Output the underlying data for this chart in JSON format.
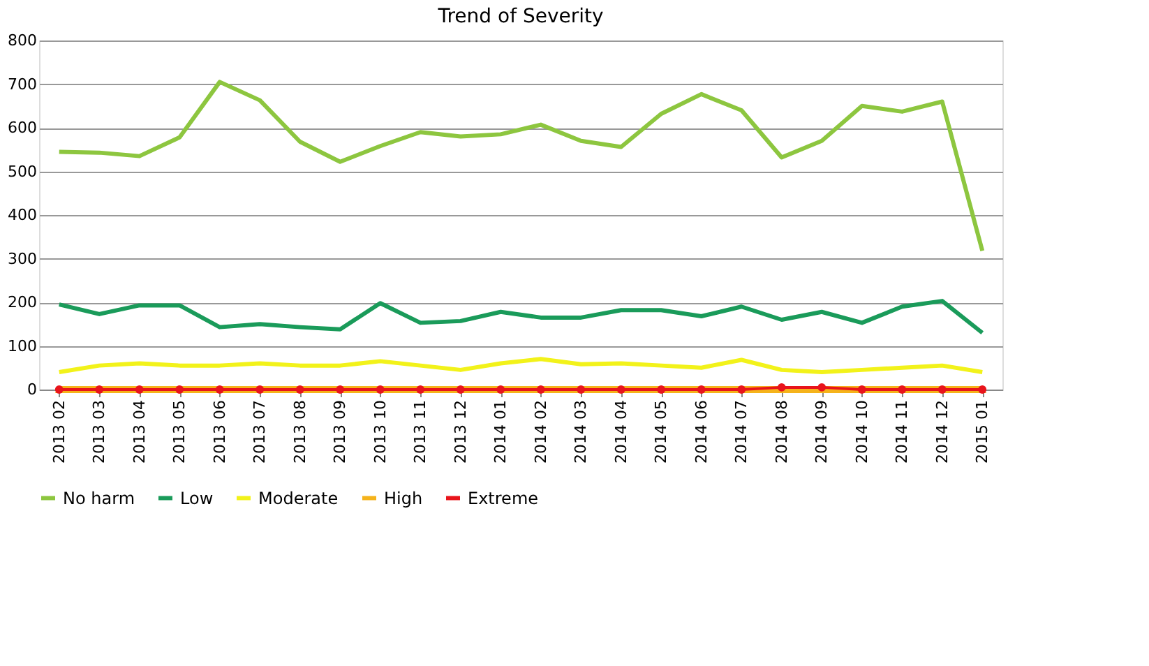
{
  "chart_data": {
    "type": "line",
    "title": "Trend of Severity",
    "categories": [
      "2013 02",
      "2013 03",
      "2013 04",
      "2013 05",
      "2013 06",
      "2013 07",
      "2013 08",
      "2013 09",
      "2013 10",
      "2013 11",
      "2013 12",
      "2014 01",
      "2014 02",
      "2014 03",
      "2014 04",
      "2014 05",
      "2014 06",
      "2014 07",
      "2014 08",
      "2014 09",
      "2014 10",
      "2014 11",
      "2014 12",
      "2015 01"
    ],
    "series": [
      {
        "name": "No harm",
        "color": "#8dc63f",
        "marker": "none",
        "values": [
          545,
          543,
          535,
          578,
          705,
          663,
          568,
          522,
          558,
          590,
          580,
          585,
          607,
          570,
          556,
          632,
          677,
          640,
          532,
          570,
          650,
          637,
          660,
          318
        ]
      },
      {
        "name": "Low",
        "color": "#1a9b5a",
        "marker": "none",
        "values": [
          195,
          173,
          193,
          193,
          143,
          150,
          143,
          138,
          198,
          153,
          157,
          178,
          165,
          165,
          182,
          182,
          168,
          190,
          160,
          178,
          153,
          190,
          203,
          130
        ]
      },
      {
        "name": "Moderate",
        "color": "#f2f21a",
        "marker": "none",
        "values": [
          40,
          55,
          60,
          55,
          55,
          60,
          55,
          55,
          65,
          55,
          45,
          60,
          70,
          58,
          60,
          55,
          50,
          68,
          45,
          40,
          45,
          50,
          55,
          40
        ]
      },
      {
        "name": "High",
        "color": "#f5b31b",
        "marker": "triangle",
        "values": [
          0,
          0,
          0,
          0,
          0,
          0,
          0,
          0,
          0,
          0,
          0,
          0,
          0,
          0,
          0,
          0,
          0,
          0,
          0,
          0,
          0,
          0,
          0,
          0
        ]
      },
      {
        "name": "Extreme",
        "color": "#e8141b",
        "marker": "circle",
        "values": [
          0,
          0,
          0,
          0,
          0,
          0,
          0,
          0,
          0,
          0,
          0,
          0,
          0,
          0,
          0,
          0,
          0,
          0,
          5,
          5,
          0,
          0,
          0,
          0
        ]
      }
    ],
    "ylim": [
      0,
      800
    ],
    "yticks": [
      0,
      100,
      200,
      300,
      400,
      500,
      600,
      700,
      800
    ],
    "grid": "y",
    "legend": "bottom"
  }
}
